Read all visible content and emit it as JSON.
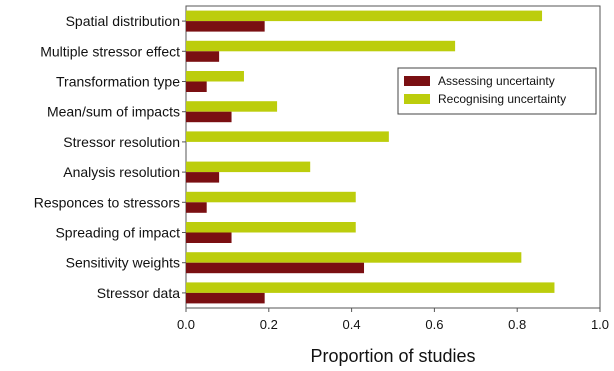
{
  "chart_data": {
    "type": "bar",
    "orientation": "horizontal",
    "categories": [
      "Spatial distribution",
      "Multiple stressor effect",
      "Transformation type",
      "Mean/sum of impacts",
      "Stressor resolution",
      "Analysis resolution",
      "Responces to stressors",
      "Spreading of impact",
      "Sensitivity weights",
      "Stressor data"
    ],
    "series": [
      {
        "name": "Assessing uncertainty",
        "color": "#7a0f12",
        "values": [
          0.19,
          0.08,
          0.05,
          0.11,
          0.0,
          0.08,
          0.05,
          0.11,
          0.43,
          0.19
        ]
      },
      {
        "name": "Recognising uncertainty",
        "color": "#bccd0c",
        "values": [
          0.86,
          0.65,
          0.14,
          0.22,
          0.49,
          0.3,
          0.41,
          0.41,
          0.81,
          0.89
        ]
      }
    ],
    "xlabel": "Proportion of studies",
    "ylabel": "",
    "xlim": [
      0,
      1
    ],
    "xticks": [
      "0.0",
      "0.2",
      "0.4",
      "0.6",
      "0.8",
      "1.0"
    ],
    "grid": false,
    "legend_position": "right"
  }
}
